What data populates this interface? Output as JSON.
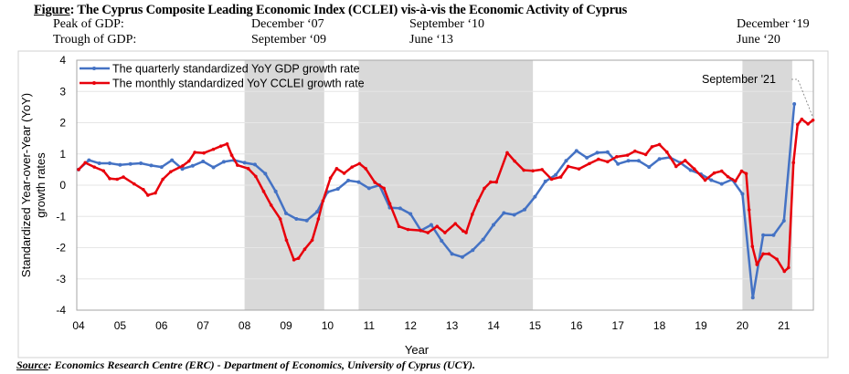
{
  "title": {
    "prefix": "Figure",
    "text": ": The Cyprus Composite Leading Economic Index (CCLEI) vis-à-vis the Economic Activity of Cyprus"
  },
  "turning_points": {
    "peak_label": "Peak of GDP:",
    "trough_label": "Trough of GDP:",
    "peaks": [
      "December ‘07",
      "September ‘10",
      "December ‘19"
    ],
    "troughs": [
      "September ‘09",
      "June ‘13",
      "June ‘20"
    ]
  },
  "source": {
    "prefix": "Source",
    "text": ": Economics Research Centre (ERC) - Department of Economics, University of Cyprus (UCY)."
  },
  "chart_data": {
    "type": "line",
    "xlabel": "Year",
    "ylabel_lines": [
      "Standardized Year-over-Year (YoY)",
      "growth rates"
    ],
    "xlim": [
      2004,
      2021.75
    ],
    "ylim": [
      -4,
      4
    ],
    "yticks": [
      -4,
      -3,
      -2,
      -1,
      0,
      1,
      2,
      3,
      4
    ],
    "xticks": [
      2004,
      2005,
      2006,
      2007,
      2008,
      2009,
      2010,
      2011,
      2012,
      2013,
      2014,
      2015,
      2016,
      2017,
      2018,
      2019,
      2020,
      2021
    ],
    "xtick_labels": [
      "04",
      "05",
      "06",
      "07",
      "08",
      "09",
      "10",
      "11",
      "12",
      "13",
      "14",
      "15",
      "16",
      "17",
      "18",
      "19",
      "20",
      "21"
    ],
    "grid": "horizontal",
    "legend_position": "top-left",
    "shaded_periods": [
      [
        2008.0,
        2009.92
      ],
      [
        2010.75,
        2014.95
      ],
      [
        2020.0,
        2021.2
      ]
    ],
    "annotation": {
      "text": "September '21",
      "x": 2021.7,
      "y": 2.08
    },
    "series": [
      {
        "name": "The quarterly standardized YoY GDP growth rate",
        "color": "#4472C4",
        "x_start": 2004.0,
        "x_step": 0.25,
        "values": [
          0.5,
          0.8,
          0.7,
          0.7,
          0.65,
          0.68,
          0.7,
          0.63,
          0.58,
          0.8,
          0.52,
          0.62,
          0.76,
          0.57,
          0.75,
          0.8,
          0.72,
          0.66,
          0.37,
          -0.2,
          -0.9,
          -1.08,
          -1.13,
          -0.85,
          -0.22,
          -0.12,
          0.15,
          0.1,
          -0.1,
          0,
          -0.72,
          -0.74,
          -0.92,
          -1.45,
          -1.27,
          -1.78,
          -2.2,
          -2.3,
          -2.08,
          -1.74,
          -1.27,
          -0.89,
          -0.95,
          -0.78,
          -0.37,
          0.12,
          0.33,
          0.78,
          1.1,
          0.88,
          1.04,
          1.06,
          0.68,
          0.78,
          0.78,
          0.58,
          0.84,
          0.89,
          0.72,
          0.48,
          0.35,
          0.16,
          0.04,
          0.18,
          -0.28,
          -3.6,
          -1.6,
          -1.6,
          -1.14,
          2.6
        ]
      },
      {
        "name": "The monthly standardized YoY CCLEI growth rate",
        "color": "#E8000B",
        "x": [
          2004.0,
          2004.16,
          2004.38,
          2004.6,
          2004.75,
          2004.93,
          2005.08,
          2005.34,
          2005.56,
          2005.67,
          2005.85,
          2006.03,
          2006.22,
          2006.51,
          2006.66,
          2006.8,
          2007.02,
          2007.25,
          2007.43,
          2007.58,
          2007.69,
          2007.83,
          2008.09,
          2008.27,
          2008.46,
          2008.64,
          2008.86,
          2009.01,
          2009.19,
          2009.3,
          2009.45,
          2009.63,
          2009.78,
          2009.89,
          2010.07,
          2010.22,
          2010.4,
          2010.59,
          2010.77,
          2010.92,
          2011.14,
          2011.36,
          2011.5,
          2011.72,
          2011.94,
          2012.24,
          2012.42,
          2012.64,
          2012.83,
          2013.08,
          2013.27,
          2013.34,
          2013.49,
          2013.63,
          2013.78,
          2013.93,
          2014.07,
          2014.33,
          2014.51,
          2014.73,
          2014.95,
          2015.17,
          2015.4,
          2015.62,
          2015.8,
          2016.06,
          2016.31,
          2016.53,
          2016.75,
          2016.97,
          2017.23,
          2017.41,
          2017.67,
          2017.82,
          2018.0,
          2018.18,
          2018.4,
          2018.62,
          2018.84,
          2019.1,
          2019.32,
          2019.5,
          2019.65,
          2019.83,
          2019.98,
          2020.09,
          2020.16,
          2020.24,
          2020.35,
          2020.5,
          2020.64,
          2020.83,
          2021.01,
          2021.11,
          2021.23,
          2021.33,
          2021.43,
          2021.58,
          2021.7
        ],
        "values": [
          0.5,
          0.72,
          0.58,
          0.46,
          0.21,
          0.19,
          0.26,
          0.04,
          -0.14,
          -0.32,
          -0.25,
          0.19,
          0.43,
          0.62,
          0.77,
          1.05,
          1.03,
          1.15,
          1.25,
          1.32,
          0.96,
          0.64,
          0.53,
          0.28,
          -0.2,
          -0.64,
          -1.08,
          -1.76,
          -2.39,
          -2.34,
          -2.05,
          -1.76,
          -1.08,
          -0.5,
          0.23,
          0.53,
          0.38,
          0.58,
          0.69,
          0.53,
          0.09,
          -0.1,
          -0.59,
          -1.32,
          -1.42,
          -1.45,
          -1.52,
          -1.32,
          -1.52,
          -1.23,
          -1.47,
          -1.52,
          -0.93,
          -0.5,
          -0.1,
          0.1,
          0.1,
          1.04,
          0.77,
          0.48,
          0.46,
          0.5,
          0.19,
          0.26,
          0.6,
          0.52,
          0.69,
          0.83,
          0.75,
          0.91,
          0.96,
          1.09,
          0.98,
          1.23,
          1.3,
          1.06,
          0.6,
          0.79,
          0.52,
          0.16,
          0.39,
          0.45,
          0.27,
          0.13,
          0.45,
          0.37,
          -0.79,
          -1.96,
          -2.54,
          -2.2,
          -2.2,
          -2.37,
          -2.76,
          -2.64,
          0.72,
          1.94,
          2.11,
          1.96,
          2.08
        ]
      }
    ]
  }
}
